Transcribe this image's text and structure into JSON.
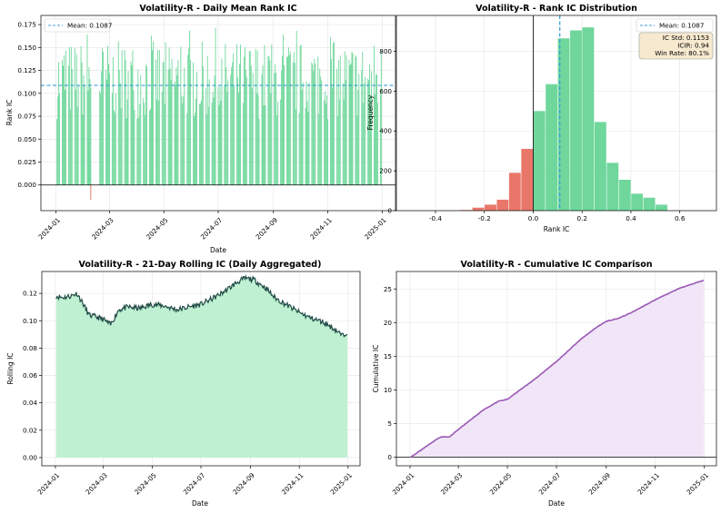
{
  "chart_data": [
    {
      "type": "bar",
      "title": "Volatility-R - Daily Mean Rank IC",
      "xlabel": "Date",
      "ylabel": "Rank IC",
      "x_tick_labels": [
        "2024-01",
        "2024-03",
        "2024-05",
        "2024-07",
        "2024-09",
        "2024-11",
        "2025-01"
      ],
      "y_ticks": [
        0.0,
        0.025,
        0.05,
        0.075,
        0.1,
        0.125,
        0.15,
        0.175
      ],
      "y_tick_labels": [
        "0.000",
        "0.025",
        "0.050",
        "0.075",
        "0.100",
        "0.125",
        "0.150",
        "0.175"
      ],
      "ylim": [
        -0.028,
        0.185
      ],
      "xlim": [
        "2023-12-15",
        "2025-01-16"
      ],
      "x_range": [
        "2024-01-02",
        "2024-12-31"
      ],
      "mean_line": {
        "value": 0.1087,
        "label": "Mean: 0.1087"
      },
      "legend_position": "top-left",
      "gap": [
        "2024-02-10",
        "2024-02-19"
      ],
      "positive_color": "#6fd79b",
      "negative_color": "#e8776a",
      "mean_color": "#3a9fd8",
      "grid": true
    },
    {
      "type": "bar",
      "title": "Volatility-R - Rank IC Distribution",
      "xlabel": "Rank IC",
      "ylabel": "Frequency",
      "bin_edges": [
        -0.3,
        -0.25,
        -0.2,
        -0.15,
        -0.1,
        -0.05,
        0.0,
        0.05,
        0.1,
        0.15,
        0.2,
        0.25,
        0.3,
        0.35,
        0.4,
        0.45,
        0.5,
        0.55
      ],
      "counts": [
        3,
        15,
        30,
        55,
        190,
        310,
        500,
        635,
        865,
        905,
        920,
        445,
        240,
        155,
        85,
        65,
        30
      ],
      "x_ticks": [
        -0.4,
        -0.2,
        0.0,
        0.2,
        0.4,
        0.6
      ],
      "x_tick_labels": [
        "-0.4",
        "-0.2",
        "0.0",
        "0.2",
        "0.4",
        "0.6"
      ],
      "y_ticks": [
        0,
        200,
        400,
        600,
        800
      ],
      "xlim": [
        -0.56,
        0.75
      ],
      "ylim": [
        0,
        980
      ],
      "zero_line": 0.0,
      "mean_line": {
        "value": 0.1087,
        "label": "Mean: 0.1087"
      },
      "legend_position": "top-right",
      "stats": [
        "IC Std: 0.1153",
        "ICIR: 0.94",
        "Win Rate: 80.1%"
      ],
      "positive_color": "#6fd79b",
      "negative_color": "#e8776a",
      "mean_color": "#3a9fd8",
      "grid": true
    },
    {
      "type": "area",
      "title": "Volatility-R - 21-Day Rolling IC (Daily Aggregated)",
      "xlabel": "Date",
      "ylabel": "Rolling IC",
      "x_tick_labels": [
        "2024-01",
        "2024-03",
        "2024-05",
        "2024-07",
        "2024-09",
        "2024-11",
        "2025-01"
      ],
      "y_ticks": [
        0.0,
        0.02,
        0.04,
        0.06,
        0.08,
        0.1,
        0.12
      ],
      "y_tick_labels": [
        "0.00",
        "0.02",
        "0.04",
        "0.06",
        "0.08",
        "0.10",
        "0.12"
      ],
      "ylim": [
        -0.006,
        0.136
      ],
      "xlim": [
        "2023-12-15",
        "2025-01-16"
      ],
      "series": [
        {
          "x": [
            "2024-01-02",
            "2024-01-10",
            "2024-01-20",
            "2024-01-28",
            "2024-02-05",
            "2024-02-12",
            "2024-02-20",
            "2024-03-01",
            "2024-03-10",
            "2024-03-20",
            "2024-04-01",
            "2024-04-15",
            "2024-05-01",
            "2024-05-15",
            "2024-06-01",
            "2024-06-15",
            "2024-07-01",
            "2024-07-15",
            "2024-08-01",
            "2024-08-15",
            "2024-08-25",
            "2024-09-05",
            "2024-09-20",
            "2024-10-01",
            "2024-10-15",
            "2024-11-01",
            "2024-11-15",
            "2024-12-01",
            "2024-12-15",
            "2024-12-25",
            "2024-12-31"
          ],
          "y": [
            0.118,
            0.117,
            0.118,
            0.12,
            0.112,
            0.104,
            0.103,
            0.101,
            0.097,
            0.108,
            0.11,
            0.109,
            0.112,
            0.111,
            0.108,
            0.11,
            0.112,
            0.116,
            0.122,
            0.128,
            0.131,
            0.13,
            0.124,
            0.117,
            0.112,
            0.106,
            0.102,
            0.099,
            0.094,
            0.089,
            0.092
          ]
        }
      ],
      "fill_color": "#bff0d2",
      "line_color": "#1f4a45",
      "grid": true
    },
    {
      "type": "area",
      "title": "Volatility-R - Cumulative IC Comparison",
      "xlabel": "Date",
      "ylabel": "Cumulative IC",
      "x_tick_labels": [
        "2024-01",
        "2024-03",
        "2024-05",
        "2024-07",
        "2024-09",
        "2024-11",
        "2025-01"
      ],
      "y_ticks": [
        0,
        5,
        10,
        15,
        20,
        25
      ],
      "ylim": [
        -1.3,
        27.6
      ],
      "xlim": [
        "2023-12-15",
        "2025-01-16"
      ],
      "series": [
        {
          "x": [
            "2024-01-02",
            "2024-01-20",
            "2024-02-05",
            "2024-02-10",
            "2024-02-19",
            "2024-03-01",
            "2024-04-01",
            "2024-04-20",
            "2024-05-01",
            "2024-06-01",
            "2024-07-01",
            "2024-08-01",
            "2024-08-20",
            "2024-09-01",
            "2024-09-15",
            "2024-10-01",
            "2024-11-01",
            "2024-12-01",
            "2024-12-31"
          ],
          "y": [
            0.0,
            1.5,
            2.8,
            3.0,
            3.0,
            4.1,
            7.0,
            8.3,
            8.6,
            11.3,
            14.2,
            17.6,
            19.3,
            20.2,
            20.6,
            21.4,
            23.4,
            25.1,
            26.3
          ]
        }
      ],
      "fill_color": "#f1e6f8",
      "line_color": "#9b59b6",
      "grid": true
    }
  ]
}
